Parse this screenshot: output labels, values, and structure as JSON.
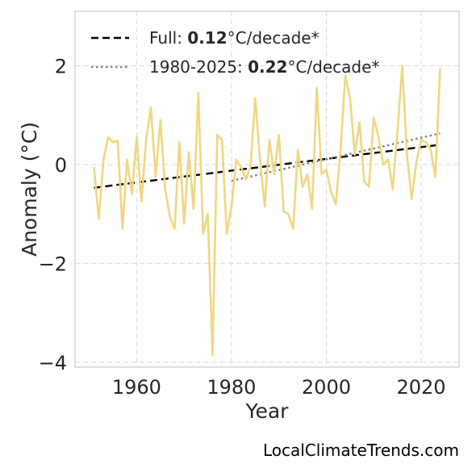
{
  "chart_data": {
    "type": "line",
    "xlabel": "Year",
    "ylabel": "Anomaly (°C)",
    "xlim": [
      1947,
      2028
    ],
    "ylim": [
      -4.1,
      3.1
    ],
    "xticks": [
      1960,
      1980,
      2000,
      2020
    ],
    "yticks": [
      -4,
      -2,
      0,
      2
    ],
    "ytick_labels": [
      "−4",
      "−2",
      "0",
      "2"
    ],
    "grid": true,
    "legend_position": "top-left",
    "series": [
      {
        "color": "#f0d680",
        "x": [
          1951,
          1952,
          1953,
          1954,
          1955,
          1956,
          1957,
          1958,
          1959,
          1960,
          1961,
          1962,
          1963,
          1964,
          1965,
          1966,
          1967,
          1968,
          1969,
          1970,
          1971,
          1972,
          1973,
          1974,
          1975,
          1976,
          1977,
          1978,
          1979,
          1980,
          1981,
          1982,
          1983,
          1984,
          1985,
          1986,
          1987,
          1988,
          1989,
          1990,
          1991,
          1992,
          1993,
          1994,
          1995,
          1996,
          1997,
          1998,
          1999,
          2000,
          2001,
          2002,
          2003,
          2004,
          2005,
          2006,
          2007,
          2008,
          2009,
          2010,
          2011,
          2012,
          2013,
          2014,
          2015,
          2016,
          2017,
          2018,
          2019,
          2020,
          2021,
          2022,
          2023,
          2024
        ],
        "y": [
          -0.05,
          -1.1,
          0.1,
          0.55,
          0.45,
          0.48,
          -1.3,
          0.1,
          -0.6,
          0.55,
          -0.75,
          0.5,
          1.15,
          -0.25,
          0.9,
          -0.5,
          -1.05,
          -1.3,
          0.45,
          -1.2,
          0.25,
          -0.9,
          1.45,
          -1.4,
          -1.0,
          -3.85,
          0.6,
          0.5,
          -1.4,
          -0.85,
          0.1,
          -0.05,
          -0.3,
          -0.05,
          1.35,
          0.1,
          -0.85,
          0.5,
          -0.2,
          0.6,
          -0.95,
          -1.0,
          -1.3,
          0.3,
          -0.45,
          -0.2,
          -0.9,
          1.55,
          -0.2,
          -0.1,
          -0.55,
          -0.8,
          0.3,
          1.8,
          1.35,
          0.2,
          0.85,
          -0.35,
          -0.45,
          0.95,
          0.55,
          0.0,
          0.1,
          -0.5,
          0.65,
          2.0,
          0.2,
          -0.7,
          0.05,
          0.5,
          0.45,
          0.3,
          -0.25,
          1.95
        ]
      }
    ],
    "trends": [
      {
        "label_prefix": "Full: ",
        "label_value": "0.12",
        "label_suffix": "°C/decade*",
        "style": "dashed",
        "color": "#000000",
        "x": [
          1951,
          2024
        ],
        "y": [
          -0.47,
          0.4
        ]
      },
      {
        "label_prefix": "1980-2025: ",
        "label_value": "0.22",
        "label_suffix": "°C/decade*",
        "style": "dotted",
        "color": "#808080",
        "x": [
          1980,
          2024
        ],
        "y": [
          -0.33,
          0.63
        ]
      }
    ]
  },
  "credit": "LocalClimateTrends.com"
}
